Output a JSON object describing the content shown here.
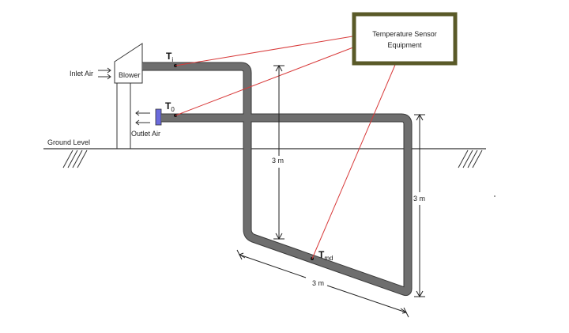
{
  "sensor_box": {
    "line1": "Temperature Sensor",
    "line2": "Equipment"
  },
  "labels": {
    "inlet_air": "Inlet Air",
    "blower": "Blower",
    "outlet_air": "Outlet Air",
    "ground_level": "Ground Level"
  },
  "symbols": {
    "ti_main": "T",
    "ti_sub": "i",
    "to_main": "T",
    "to_sub": "0",
    "tmd_main": "T",
    "tmd_sub": "md"
  },
  "dimensions": {
    "vertical_left": "3 m",
    "vertical_right": "3 m",
    "bottom_length": "3 m"
  },
  "colors": {
    "pipe": "#6e6e6e",
    "sensor_border": "#5a5a28",
    "sensor_lines": "#d83a3a",
    "outlet_cap": "#6b6bdc"
  }
}
